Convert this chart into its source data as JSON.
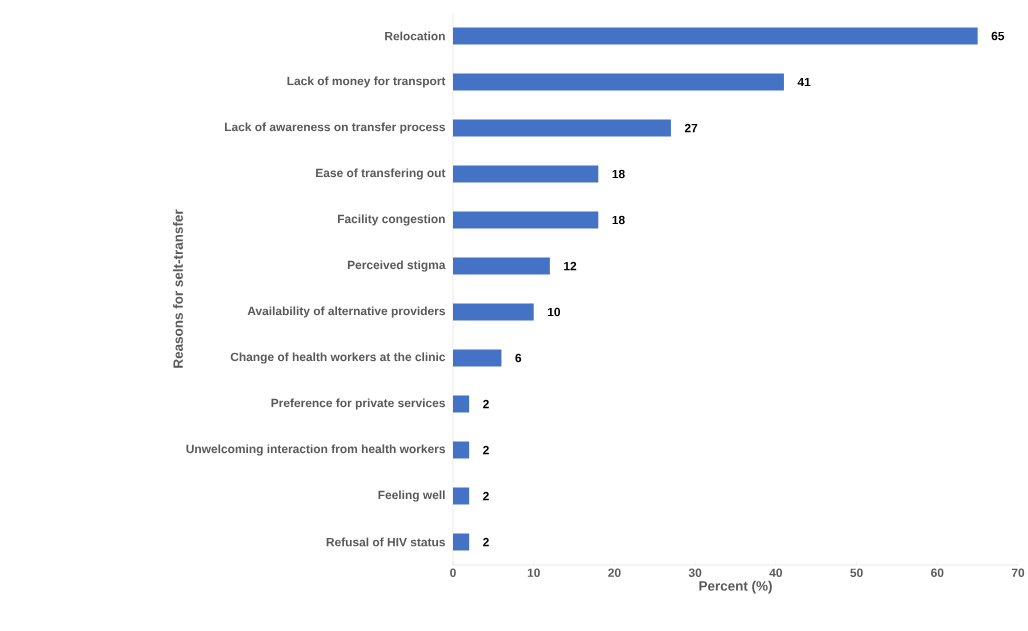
{
  "chart_data": {
    "type": "bar",
    "orientation": "horizontal",
    "xlabel": "Percent (%)",
    "ylabel": "Reasons for selt-transfer",
    "categories": [
      "Relocation",
      "Lack of money for transport",
      "Lack of awareness on transfer process",
      "Ease of transfering out",
      "Facility congestion",
      "Perceived stigma",
      "Availability of alternative providers",
      "Change of health workers at the clinic",
      "Preference for private services",
      "Unwelcoming interaction from health workers",
      "Feeling well",
      "Refusal of HIV status"
    ],
    "values": [
      65,
      41,
      27,
      18,
      18,
      12,
      10,
      6,
      2,
      2,
      2,
      2
    ],
    "color": "#4472c4",
    "data_labels": true,
    "grid": false,
    "xlim": [
      0,
      70
    ],
    "xticks": [
      0,
      10,
      20,
      30,
      40,
      50,
      60,
      70
    ]
  }
}
